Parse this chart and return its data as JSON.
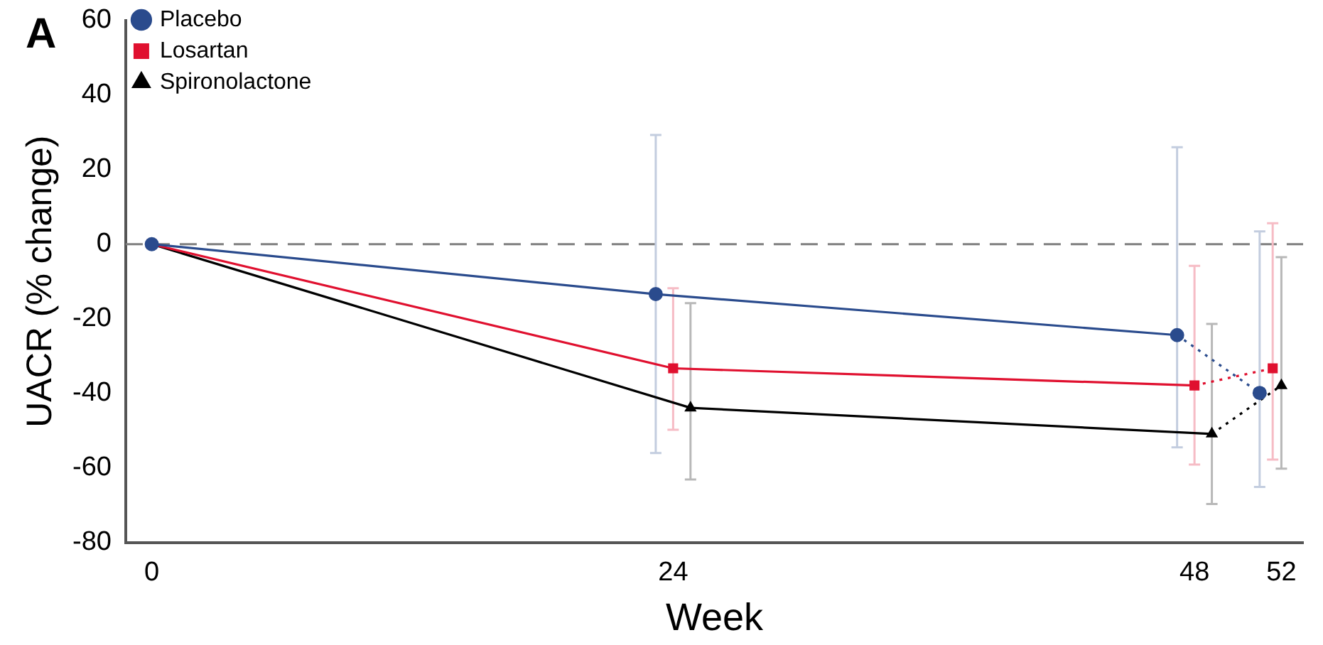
{
  "chart_data": {
    "type": "line",
    "xlabel": "Week",
    "ylabel": "UACR (% change)",
    "annotations": [
      "A"
    ],
    "xlim": [
      -1.2,
      53
    ],
    "xticks": [
      0,
      24,
      48,
      52
    ],
    "ylim": [
      -80,
      60
    ],
    "yticks": [
      60,
      40,
      20,
      0,
      -20,
      -40,
      -60,
      -80
    ],
    "grid": false,
    "legend": "top left",
    "ref_lines": [
      {
        "axis": "y",
        "value": 0,
        "color": "#7f7f7f",
        "line_style": "dashed"
      }
    ],
    "series": [
      {
        "name": "Placebo",
        "color": "#2a4b8d",
        "marker": "circle",
        "line_style": [
          "solid",
          "solid",
          "dotted"
        ],
        "x": [
          0,
          23.2,
          47.2,
          51
        ],
        "values": [
          0,
          -13.4,
          -24.4,
          -39.9
        ],
        "errors": [
          null,
          [
            -56,
            29.3
          ],
          [
            -54.5,
            26
          ],
          [
            -65.1,
            3.4
          ]
        ]
      },
      {
        "name": "Losartan",
        "color": "#e0102f",
        "marker": "square",
        "line_style": [
          "solid",
          "solid",
          "dotted"
        ],
        "x": [
          0,
          24,
          48,
          51.6
        ],
        "values": [
          0,
          -33.3,
          -37.9,
          -33.3
        ],
        "errors": [
          null,
          [
            -49.8,
            -11.8
          ],
          [
            -59.1,
            -5.8
          ],
          [
            -57.8,
            5.6
          ]
        ]
      },
      {
        "name": "Spironolactone",
        "color": "#000000",
        "marker": "triangle",
        "line_style": [
          "solid",
          "solid",
          "dotted"
        ],
        "x": [
          0,
          24.8,
          48.8,
          52
        ],
        "values": [
          0,
          -43.9,
          -50.9,
          -37.9
        ],
        "errors": [
          null,
          [
            -63.1,
            -15.8
          ],
          [
            -69.7,
            -21.4
          ],
          [
            -60.2,
            -3.5
          ]
        ]
      }
    ]
  }
}
